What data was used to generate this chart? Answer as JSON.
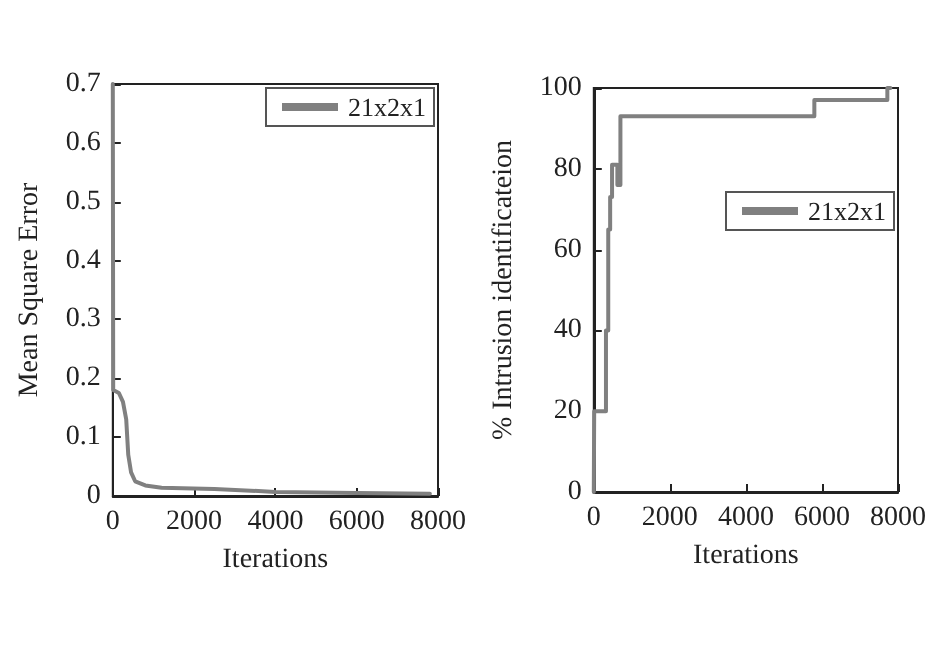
{
  "chart_data": [
    {
      "type": "line",
      "xlabel": "Iterations",
      "ylabel": "Mean Square Error",
      "x": [
        0,
        10,
        150,
        250,
        330,
        380,
        450,
        550,
        800,
        1200,
        2500,
        4000,
        6000,
        7800
      ],
      "series": [
        {
          "name": "21x2x1",
          "color": "#808080",
          "values": [
            0.7,
            0.18,
            0.175,
            0.16,
            0.13,
            0.07,
            0.04,
            0.025,
            0.018,
            0.014,
            0.012,
            0.007,
            0.005,
            0.004
          ]
        }
      ],
      "xlim": [
        0,
        8000
      ],
      "xticks": [
        0,
        2000,
        4000,
        6000,
        8000
      ],
      "ylim": [
        0,
        0.7
      ],
      "yticks": [
        0,
        0.1,
        0.2,
        0.3,
        0.4,
        0.5,
        0.6,
        0.7
      ],
      "legend": "top right"
    },
    {
      "type": "step",
      "xlabel": "Iterations",
      "ylabel": "% Intrusion identificateion",
      "x": [
        0,
        10,
        320,
        380,
        430,
        480,
        620,
        700,
        5800,
        7720,
        7800
      ],
      "series": [
        {
          "name": "21x2x1",
          "color": "#808080",
          "values": [
            0,
            20,
            40,
            65,
            73,
            81,
            76,
            93,
            97,
            100,
            100
          ]
        }
      ],
      "xlim": [
        0,
        8000
      ],
      "xticks": [
        0,
        2000,
        4000,
        6000,
        8000
      ],
      "ylim": [
        0,
        100
      ],
      "yticks": [
        0,
        20,
        40,
        60,
        80,
        100
      ],
      "legend": "top right"
    }
  ]
}
